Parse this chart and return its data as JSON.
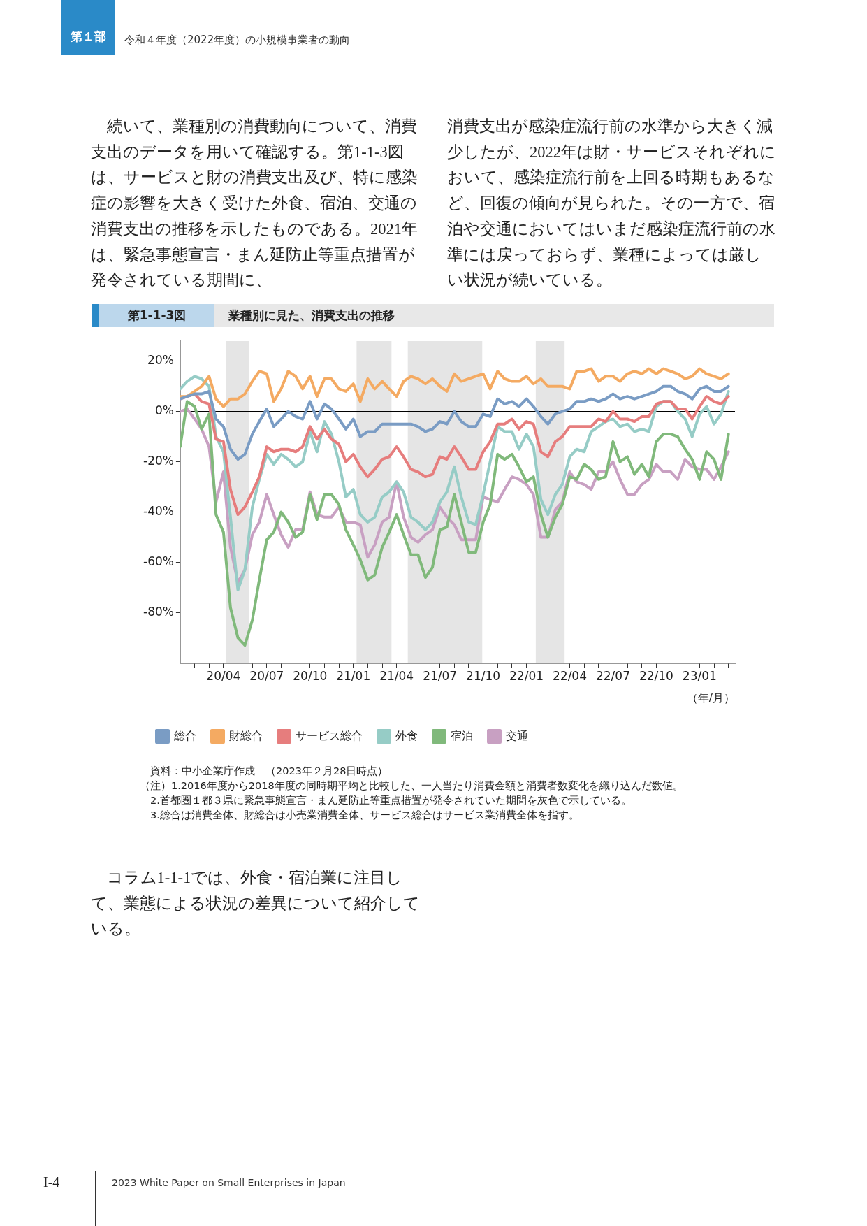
{
  "chart_data": {
    "type": "line",
    "title": "業種別に見た、消費支出の推移",
    "subtitle": "第1-1-3図",
    "xlabel": "（年/月）",
    "x": [
      "2020-01-01",
      "2020-01-16",
      "2020-02-01",
      "2020-02-16",
      "2020-03-01",
      "2020-03-16",
      "2020-04-01",
      "2020-04-16",
      "2020-05-01",
      "2020-05-16",
      "2020-06-01",
      "2020-06-16",
      "2020-07-01",
      "2020-07-16",
      "2020-08-01",
      "2020-08-16",
      "2020-09-01",
      "2020-09-16",
      "2020-10-01",
      "2020-10-16",
      "2020-11-01",
      "2020-11-16",
      "2020-12-01",
      "2020-12-16",
      "2021-01-01",
      "2021-01-16",
      "2021-02-01",
      "2021-02-16",
      "2021-03-01",
      "2021-03-16",
      "2021-04-01",
      "2021-04-16",
      "2021-05-01",
      "2021-05-16",
      "2021-06-01",
      "2021-06-16",
      "2021-07-01",
      "2021-07-16",
      "2021-08-01",
      "2021-08-16",
      "2021-09-01",
      "2021-09-16",
      "2021-10-01",
      "2021-10-16",
      "2021-11-01",
      "2021-11-16",
      "2021-12-01",
      "2021-12-16",
      "2022-01-01",
      "2022-01-16",
      "2022-02-01",
      "2022-02-16",
      "2022-03-01",
      "2022-03-16",
      "2022-04-01",
      "2022-04-16",
      "2022-05-01",
      "2022-05-16",
      "2022-06-01",
      "2022-06-16",
      "2022-07-01",
      "2022-07-16",
      "2022-08-01",
      "2022-08-16",
      "2022-09-01",
      "2022-09-16",
      "2022-10-01",
      "2022-10-16",
      "2022-11-01",
      "2022-11-16",
      "2022-12-01",
      "2022-12-16",
      "2023-01-01",
      "2023-01-16",
      "2023-02-01",
      "2023-02-16",
      "2023-03-01"
    ],
    "series": [
      {
        "name": "総合",
        "color": "#7a9cc4",
        "values": [
          5,
          6,
          7,
          7,
          8,
          -3,
          -6,
          -15,
          -19,
          -17,
          -9,
          -4,
          1,
          -6,
          -3,
          0,
          -2,
          -3,
          4,
          -3,
          3,
          1,
          -3,
          -7,
          -3,
          -10,
          -8,
          -8,
          -5,
          -5,
          -5,
          -5,
          -5,
          -6,
          -8,
          -7,
          -4,
          -5,
          0,
          -4,
          -6,
          -6,
          -1,
          -2,
          5,
          3,
          4,
          2,
          5,
          2,
          -2,
          -5,
          -1,
          0,
          1,
          4,
          4,
          5,
          4,
          5,
          7,
          5,
          6,
          5,
          6,
          7,
          8,
          10,
          10,
          8,
          7,
          5,
          9,
          10,
          8,
          8,
          10
        ]
      },
      {
        "name": "財総合",
        "color": "#f4aa62",
        "values": [
          6,
          6,
          8,
          10,
          14,
          5,
          2,
          5,
          5,
          7,
          12,
          16,
          15,
          4,
          9,
          16,
          14,
          9,
          14,
          6,
          13,
          13,
          9,
          8,
          11,
          4,
          13,
          9,
          12,
          9,
          6,
          12,
          14,
          13,
          11,
          13,
          10,
          8,
          15,
          12,
          13,
          14,
          15,
          9,
          16,
          13,
          12,
          12,
          14,
          11,
          13,
          10,
          10,
          10,
          9,
          16,
          16,
          17,
          12,
          14,
          14,
          12,
          15,
          16,
          15,
          17,
          15,
          17,
          16,
          15,
          13,
          14,
          17,
          15,
          14,
          13,
          15
        ]
      },
      {
        "name": "サービス総合",
        "color": "#e67d7d",
        "values": [
          5,
          6,
          7,
          4,
          3,
          -11,
          -12,
          -31,
          -41,
          -38,
          -32,
          -26,
          -14,
          -16,
          -15,
          -15,
          -16,
          -14,
          -6,
          -11,
          -7,
          -11,
          -13,
          -20,
          -17,
          -22,
          -26,
          -23,
          -19,
          -18,
          -14,
          -18,
          -23,
          -24,
          -26,
          -25,
          -18,
          -19,
          -14,
          -18,
          -23,
          -23,
          -16,
          -12,
          -5,
          -5,
          -3,
          -7,
          -4,
          -5,
          -16,
          -18,
          -12,
          -10,
          -6,
          -6,
          -6,
          -6,
          -3,
          -4,
          0,
          -3,
          -3,
          -4,
          -2,
          -2,
          3,
          4,
          4,
          1,
          1,
          -3,
          2,
          6,
          4,
          3,
          6
        ]
      },
      {
        "name": "外食",
        "color": "#96ccc6",
        "values": [
          9,
          12,
          14,
          13,
          10,
          -10,
          -16,
          -42,
          -71,
          -63,
          -38,
          -27,
          -17,
          -21,
          -17,
          -19,
          -22,
          -20,
          -8,
          -16,
          -4,
          -9,
          -20,
          -34,
          -31,
          -41,
          -44,
          -42,
          -34,
          -32,
          -28,
          -32,
          -42,
          -44,
          -47,
          -44,
          -36,
          -32,
          -22,
          -34,
          -44,
          -45,
          -33,
          -20,
          -6,
          -8,
          -8,
          -15,
          -9,
          -14,
          -35,
          -41,
          -33,
          -29,
          -18,
          -15,
          -16,
          -8,
          -6,
          -4,
          -3,
          -6,
          -5,
          -8,
          -7,
          -8,
          2,
          4,
          4,
          0,
          -3,
          -10,
          -1,
          2,
          -5,
          -1,
          8
        ]
      },
      {
        "name": "宿泊",
        "color": "#80b97b",
        "values": [
          -14,
          4,
          2,
          -7,
          -1,
          -41,
          -48,
          -78,
          -90,
          -93,
          -83,
          -67,
          -51,
          -48,
          -40,
          -44,
          -50,
          -48,
          -33,
          -43,
          -33,
          -33,
          -37,
          -47,
          -53,
          -59,
          -67,
          -65,
          -54,
          -48,
          -41,
          -49,
          -57,
          -57,
          -66,
          -62,
          -47,
          -46,
          -33,
          -44,
          -56,
          -56,
          -44,
          -37,
          -17,
          -19,
          -17,
          -22,
          -28,
          -26,
          -41,
          -50,
          -42,
          -37,
          -26,
          -27,
          -21,
          -23,
          -27,
          -26,
          -12,
          -20,
          -18,
          -25,
          -21,
          -26,
          -12,
          -9,
          -9,
          -10,
          -15,
          -19,
          -27,
          -16,
          -19,
          -27,
          -9
        ]
      },
      {
        "name": "交通",
        "color": "#c8a0c2",
        "values": [
          0,
          1,
          -3,
          -7,
          -14,
          -36,
          -24,
          -54,
          -68,
          -63,
          -49,
          -44,
          -33,
          -41,
          -49,
          -54,
          -47,
          -47,
          -32,
          -41,
          -42,
          -42,
          -38,
          -44,
          -44,
          -45,
          -58,
          -53,
          -44,
          -42,
          -28,
          -42,
          -50,
          -52,
          -49,
          -47,
          -38,
          -42,
          -45,
          -51,
          -51,
          -51,
          -34,
          -35,
          -36,
          -31,
          -26,
          -27,
          -29,
          -33,
          -50,
          -50,
          -39,
          -36,
          -24,
          -28,
          -29,
          -31,
          -24,
          -24,
          -20,
          -27,
          -33,
          -33,
          -29,
          -27,
          -21,
          -24,
          -24,
          -27,
          -19,
          -22,
          -23,
          -23,
          -27,
          -22,
          -16
        ]
      }
    ],
    "xlim": [
      "2020-01-01",
      "2023-03-15"
    ],
    "xticks": [
      {
        "value": "2020-01",
        "label": null
      },
      {
        "value": "2020-02",
        "label": null
      },
      {
        "value": "2020-03",
        "label": null
      },
      {
        "value": "2020-04",
        "label": "20/04"
      },
      {
        "value": "2020-05",
        "label": null
      },
      {
        "value": "2020-06",
        "label": null
      },
      {
        "value": "2020-07",
        "label": "20/07"
      },
      {
        "value": "2020-08",
        "label": null
      },
      {
        "value": "2020-09",
        "label": null
      },
      {
        "value": "2020-10",
        "label": "20/10"
      },
      {
        "value": "2020-11",
        "label": null
      },
      {
        "value": "2020-12",
        "label": null
      },
      {
        "value": "2021-01",
        "label": "21/01"
      },
      {
        "value": "2021-02",
        "label": null
      },
      {
        "value": "2021-03",
        "label": null
      },
      {
        "value": "2021-04",
        "label": "21/04"
      },
      {
        "value": "2021-05",
        "label": null
      },
      {
        "value": "2021-06",
        "label": null
      },
      {
        "value": "2021-07",
        "label": "21/07"
      },
      {
        "value": "2021-08",
        "label": null
      },
      {
        "value": "2021-09",
        "label": null
      },
      {
        "value": "2021-10",
        "label": "21/10"
      },
      {
        "value": "2021-11",
        "label": null
      },
      {
        "value": "2021-12",
        "label": null
      },
      {
        "value": "2022-01",
        "label": "22/01"
      },
      {
        "value": "2022-02",
        "label": null
      },
      {
        "value": "2022-03",
        "label": null
      },
      {
        "value": "2022-04",
        "label": "22/04"
      },
      {
        "value": "2022-05",
        "label": null
      },
      {
        "value": "2022-06",
        "label": null
      },
      {
        "value": "2022-07",
        "label": "22/07"
      },
      {
        "value": "2022-08",
        "label": null
      },
      {
        "value": "2022-09",
        "label": null
      },
      {
        "value": "2022-10",
        "label": "22/10"
      },
      {
        "value": "2022-11",
        "label": null
      },
      {
        "value": "2022-12",
        "label": null
      },
      {
        "value": "2023-01",
        "label": "23/01"
      },
      {
        "value": "2023-02",
        "label": null
      },
      {
        "value": "2023-03",
        "label": null
      }
    ],
    "ylim": [
      -100,
      28
    ],
    "yticks": [
      {
        "value": -80,
        "label": "-80%"
      },
      {
        "value": -60,
        "label": "-60%"
      },
      {
        "value": -40,
        "label": "-40%"
      },
      {
        "value": -20,
        "label": "-20%"
      },
      {
        "value": 0,
        "label": "0%"
      },
      {
        "value": 20,
        "label": "20%"
      }
    ],
    "bands": [
      {
        "axis": "x",
        "from": "2020-04-07",
        "to": "2020-05-25",
        "color": "#e5e5e5"
      },
      {
        "axis": "x",
        "from": "2021-01-08",
        "to": "2021-03-21",
        "color": "#e5e5e5"
      },
      {
        "axis": "x",
        "from": "2021-04-25",
        "to": "2021-09-30",
        "color": "#e5e5e5"
      },
      {
        "axis": "x",
        "from": "2022-01-21",
        "to": "2022-03-21",
        "color": "#e5e5e5"
      }
    ],
    "ref_lines": [
      {
        "axis": "y",
        "value": 0,
        "color": "#000000"
      }
    ],
    "marker": "none",
    "legend": "bottom",
    "annotations": [
      "第１部",
      "令和４年度（2022年度）の小規模事業者の動向",
      "続いて、業種別の消費動向について、消費支出のデータを用いて確認する。第1-1-3図は、サービスと財の消費支出及び、特に感染症の影響を大きく受けた外食、宿泊、交通の消費支出の推移を示したものである。2021年は、緊急事態宣言・まん延防止等重点措置が発令されている期間に、",
      "消費支出が感染症流行前の水準から大きく減少したが、2022年は財・サービスそれぞれにおいて、感染症流行前を上回る時期もあるなど、回復の傾向が見られた。その一方で、宿泊や交通においてはいまだ感染症流行前の水準には戻っておらず、業種によっては厳しい状況が続いている。",
      "資料：中小企業庁作成　（2023年２月28日時点）",
      "（注）1.2016年度から2018年度の同時期平均と比較した、一人当たり消費金額と消費者数変化を織り込んだ数値。",
      "2.首都圏１都３県に緊急事態宣言・まん延防止等重点措置が発令されていた期間を灰色で示している。",
      "3.総合は消費全体、財総合は小売業消費全体、サービス総合はサービス業消費全体を指す。",
      "コラム1-1-1では、外食・宿泊業に注目して、業態による状況の差異について紹介している。",
      "I-4",
      "2023 White Paper on Small Enterprises in Japan"
    ]
  }
}
